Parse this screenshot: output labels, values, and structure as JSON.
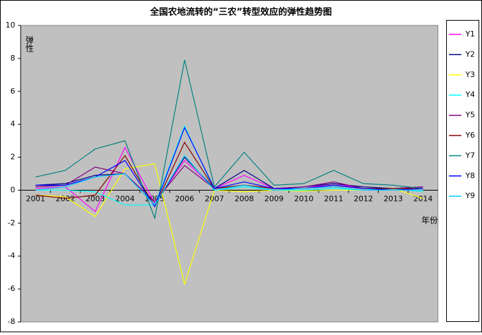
{
  "chart_data": {
    "type": "line",
    "title": "全国农地流转的“三农”转型效应的弹性趋势图",
    "y_label": "弹性",
    "x_label": "年份",
    "categories": [
      "2001",
      "2002",
      "2003",
      "2004",
      "2005",
      "2006",
      "2007",
      "2008",
      "2009",
      "2010",
      "2011",
      "2012",
      "2013",
      "2014"
    ],
    "ylim": [
      -8,
      10
    ],
    "yticks": [
      -8,
      -6,
      -4,
      -2,
      0,
      2,
      4,
      6,
      8,
      10
    ],
    "series": [
      {
        "name": "Y1",
        "color": "#ff00ff",
        "values": [
          0.1,
          0.2,
          -1.3,
          2.6,
          -0.8,
          1.8,
          0.1,
          0.9,
          0.1,
          0.1,
          0.4,
          0.1,
          0.1,
          0.1
        ]
      },
      {
        "name": "Y2",
        "color": "#000080",
        "values": [
          0.3,
          0.4,
          0.9,
          1.0,
          -0.9,
          2.0,
          0.1,
          1.2,
          0.1,
          0.2,
          0.4,
          0.2,
          0.1,
          0.2
        ]
      },
      {
        "name": "Y3",
        "color": "#ffff00",
        "values": [
          -0.3,
          -0.4,
          -1.6,
          1.3,
          1.6,
          -5.7,
          0.0,
          -0.1,
          0.0,
          -0.05,
          0.0,
          0.0,
          0.1,
          -0.5
        ]
      },
      {
        "name": "Y4",
        "color": "#00ffff",
        "values": [
          0.0,
          0.0,
          -0.1,
          -0.9,
          -0.9,
          3.9,
          0.0,
          0.2,
          0.0,
          0.0,
          0.1,
          0.0,
          0.1,
          -0.1
        ]
      },
      {
        "name": "Y5",
        "color": "#800080",
        "values": [
          0.2,
          0.3,
          1.4,
          1.0,
          -0.7,
          1.5,
          0.1,
          0.3,
          0.1,
          0.2,
          0.5,
          0.1,
          0.1,
          0.2
        ]
      },
      {
        "name": "Y6",
        "color": "#800000",
        "values": [
          -0.3,
          -0.5,
          -0.3,
          2.1,
          -1.0,
          2.9,
          0.1,
          0.3,
          0.1,
          0.1,
          0.3,
          0.1,
          0.1,
          0.1
        ]
      },
      {
        "name": "Y7",
        "color": "#008080",
        "values": [
          0.8,
          1.2,
          2.5,
          3.0,
          -1.7,
          7.9,
          0.2,
          2.3,
          0.3,
          0.4,
          1.2,
          0.4,
          0.3,
          0.1
        ]
      },
      {
        "name": "Y8",
        "color": "#0000ff",
        "values": [
          0.3,
          0.3,
          0.8,
          1.8,
          -1.0,
          3.8,
          0.1,
          0.5,
          0.1,
          0.1,
          0.3,
          0.1,
          0.0,
          0.1
        ]
      },
      {
        "name": "Y9",
        "color": "#00ccff",
        "values": [
          0.0,
          0.2,
          0.8,
          1.0,
          -0.9,
          2.1,
          0.0,
          0.3,
          0.0,
          0.1,
          0.2,
          0.0,
          0.0,
          0.0
        ]
      }
    ]
  }
}
